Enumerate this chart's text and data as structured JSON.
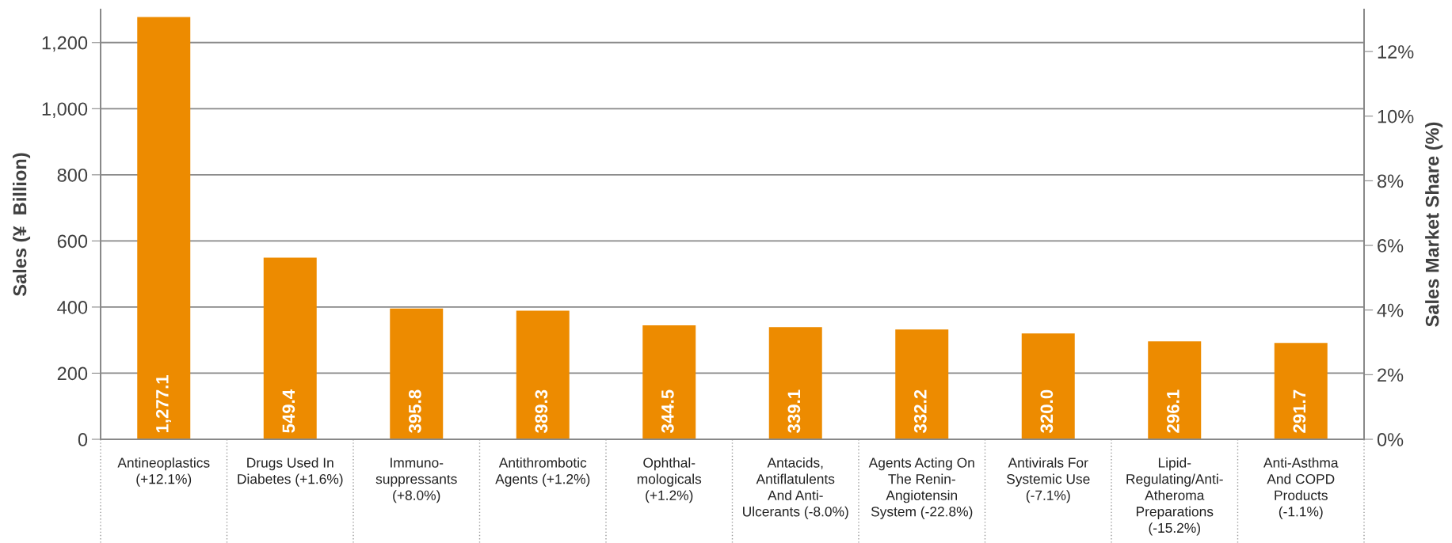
{
  "chart_data": {
    "type": "bar",
    "categories": [
      "Antineoplastics\n(+12.1%)",
      "Drugs Used In\nDiabetes (+1.6%)",
      "Immuno-\nsuppressants\n(+8.0%)",
      "Antithrombotic\nAgents (+1.2%)",
      "Ophthal-\nmologicals\n(+1.2%)",
      "Antacids,\nAntiflatulents\nAnd Anti-\nUlcerants (-8.0%)",
      "Agents Acting On\nThe Renin-\nAngiotensin\nSystem (-22.8%)",
      "Antivirals For\nSystemic Use\n(-7.1%)",
      "Lipid-\nRegulating/Anti-\nAtheroma\nPreparations\n(-15.2%)",
      "Anti-Asthma\nAnd COPD\nProducts\n(-1.1%)"
    ],
    "values": [
      1277.1,
      549.4,
      395.8,
      389.3,
      344.5,
      339.1,
      332.2,
      320.0,
      296.1,
      291.7
    ],
    "value_labels": [
      "1,277.1",
      "549.4",
      "395.8",
      "389.3",
      "344.5",
      "339.1",
      "332.2",
      "320.0",
      "296.1",
      "291.7"
    ],
    "color": "#ed8b00",
    "ylabel": "Sales (¥  Billion)",
    "y2label": "Sales Market Share (%)",
    "ylim": [
      0,
      1300
    ],
    "yticks": [
      0,
      {
        "value": 200,
        "label": "200"
      },
      {
        "value": 400,
        "label": "400"
      },
      {
        "value": 600,
        "label": "600"
      },
      {
        "value": 800,
        "label": "800"
      },
      {
        "value": 1000,
        "label": "1,000"
      },
      {
        "value": 1200,
        "label": "1,200"
      }
    ],
    "y2lim": [
      0,
      13.3
    ],
    "y2ticks": [
      {
        "value": 0,
        "label": "0%"
      },
      {
        "value": 2,
        "label": "2%"
      },
      {
        "value": 4,
        "label": "4%"
      },
      {
        "value": 6,
        "label": "6%"
      },
      {
        "value": 8,
        "label": "8%"
      },
      {
        "value": 10,
        "label": "10%"
      },
      {
        "value": 12,
        "label": "12%"
      }
    ],
    "grid": "y"
  }
}
